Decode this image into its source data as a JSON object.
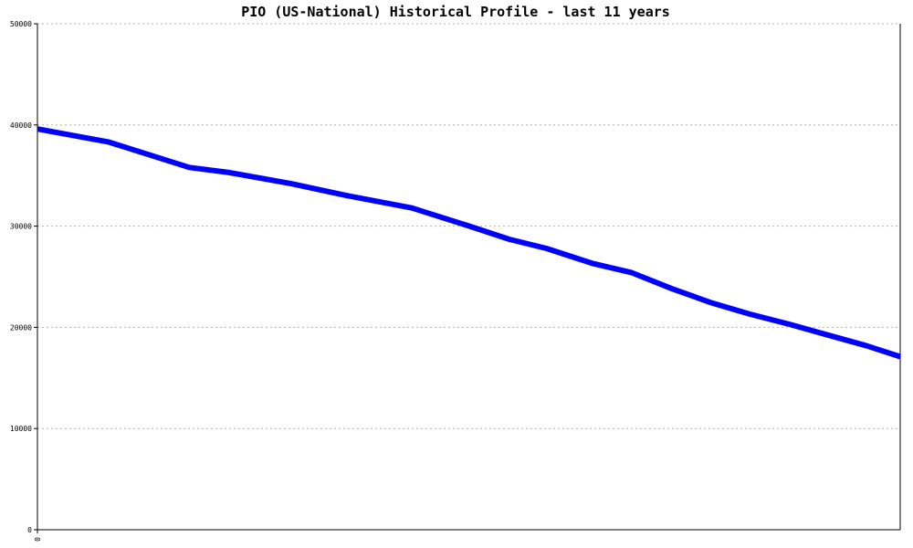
{
  "chart_data": {
    "type": "line",
    "title": "PIO (US-National) Historical Profile - last 11 years",
    "xlabel": "",
    "ylabel": "",
    "x_tick_labels": [
      "0"
    ],
    "x": [
      0,
      0.083,
      0.176,
      0.222,
      0.294,
      0.36,
      0.434,
      0.497,
      0.547,
      0.59,
      0.644,
      0.689,
      0.736,
      0.782,
      0.826,
      0.872,
      0.918,
      0.96,
      1.0
    ],
    "y_ticks": [
      0,
      10000,
      20000,
      30000,
      40000,
      50000
    ],
    "ylim": [
      0,
      50000
    ],
    "grid": true,
    "series": [
      {
        "values": [
          39600,
          38300,
          35800,
          35300,
          34200,
          33000,
          31800,
          30100,
          28700,
          27800,
          26300,
          25400,
          23800,
          22400,
          21300,
          20300,
          19200,
          18200,
          17100
        ],
        "color": "#0000ff"
      }
    ]
  }
}
